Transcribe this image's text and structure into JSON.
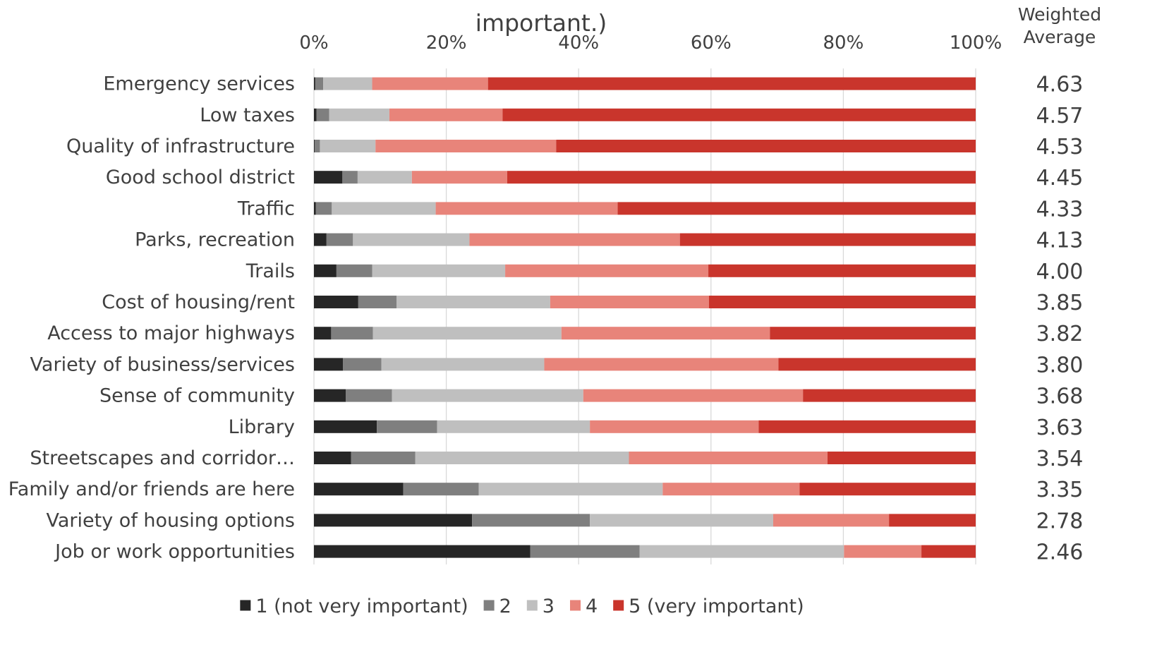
{
  "chart_data": {
    "type": "bar",
    "orientation": "horizontal",
    "stacked": "percent",
    "title": "important.)",
    "xlim": [
      0,
      100
    ],
    "x_ticks": [
      "0%",
      "20%",
      "40%",
      "60%",
      "80%",
      "100%"
    ],
    "grid": true,
    "legend_position": "bottom",
    "categories": [
      "Emergency services",
      "Low taxes",
      "Quality of infrastructure",
      "Good school district",
      "Traffic",
      "Parks, recreation",
      "Trails",
      "Cost of housing/rent",
      "Access to major highways",
      "Variety of business/services",
      "Sense of community",
      "Library",
      "Streetscapes and corridor…",
      "Family and/or friends are here",
      "Variety of housing options",
      "Job or work opportunities"
    ],
    "series": [
      {
        "name": "1 (not very important)",
        "color": "#262626",
        "values": [
          0.2,
          0.4,
          0.1,
          4.3,
          0.3,
          1.9,
          3.4,
          6.7,
          2.6,
          4.4,
          4.8,
          9.5,
          5.6,
          13.5,
          23.9,
          32.7
        ]
      },
      {
        "name": "2",
        "color": "#7f7f7f",
        "values": [
          1.2,
          1.9,
          0.8,
          2.3,
          2.4,
          4.0,
          5.4,
          5.8,
          6.3,
          5.8,
          7.0,
          9.1,
          9.7,
          11.4,
          17.8,
          16.5
        ]
      },
      {
        "name": "3",
        "color": "#bfbfbf",
        "values": [
          7.4,
          9.1,
          8.4,
          8.2,
          15.7,
          17.6,
          20.1,
          23.2,
          28.5,
          24.6,
          28.9,
          23.1,
          32.3,
          27.8,
          27.7,
          30.9
        ]
      },
      {
        "name": "4",
        "color": "#e8847a",
        "values": [
          17.5,
          17.1,
          27.3,
          14.4,
          27.5,
          31.8,
          30.7,
          24.0,
          31.5,
          35.4,
          33.2,
          25.5,
          30.0,
          20.7,
          17.5,
          11.7
        ]
      },
      {
        "name": "5 (very important)",
        "color": "#c9352c",
        "values": [
          73.7,
          71.5,
          63.4,
          70.8,
          54.1,
          44.7,
          40.4,
          40.3,
          31.1,
          29.8,
          26.1,
          32.8,
          22.4,
          26.6,
          13.1,
          8.2
        ]
      }
    ],
    "weighted_average": {
      "header": [
        "Weighted",
        "Average"
      ],
      "values": [
        "4.63",
        "4.57",
        "4.53",
        "4.45",
        "4.33",
        "4.13",
        "4.00",
        "3.85",
        "3.82",
        "3.80",
        "3.68",
        "3.63",
        "3.54",
        "3.35",
        "2.78",
        "2.46"
      ]
    }
  }
}
